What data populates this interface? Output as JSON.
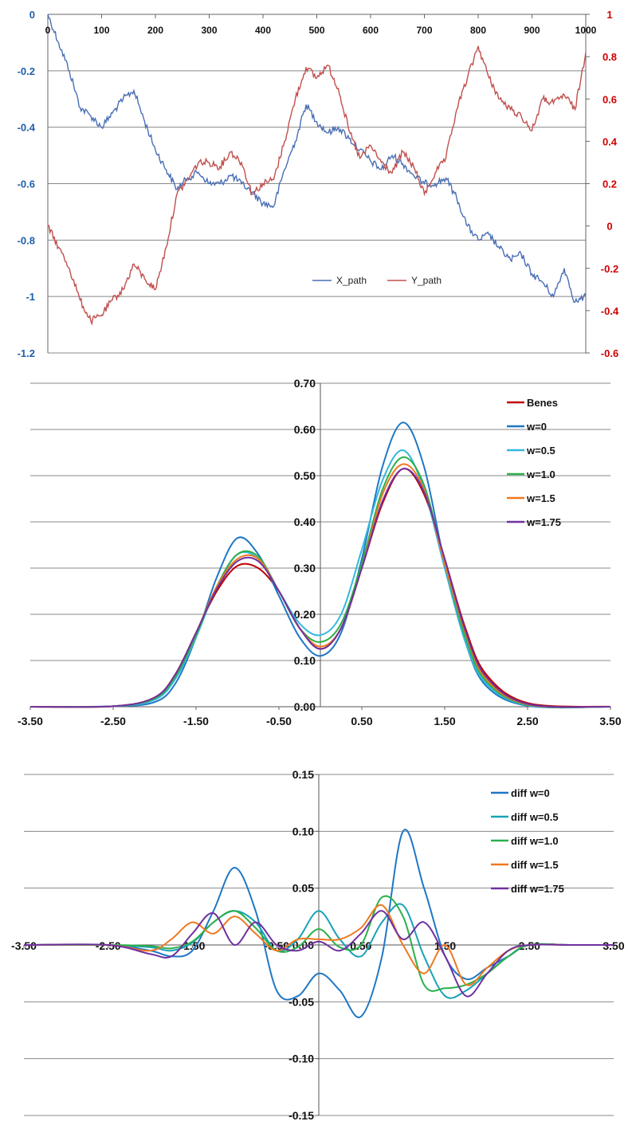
{
  "chart_data": [
    {
      "type": "line",
      "title": "",
      "xlabel": "",
      "ylabel": "",
      "xlim": [
        0,
        1000
      ],
      "x_ticks": [
        0,
        100,
        200,
        300,
        400,
        500,
        600,
        700,
        800,
        900,
        1000
      ],
      "y_left_lim": [
        -1.2,
        0
      ],
      "y_left_ticks": [
        0,
        -0.2,
        -0.4,
        -0.6,
        -0.8,
        -1,
        -1.2
      ],
      "y_right_lim": [
        -0.6,
        1
      ],
      "y_right_ticks": [
        1,
        0.8,
        0.6,
        0.4,
        0.2,
        0,
        -0.2,
        -0.4,
        -0.6
      ],
      "grid": true,
      "legend": "bottom-center",
      "series": [
        {
          "name": "X_path",
          "axis": "left",
          "color": "#4a6fb5",
          "x": [
            0,
            20,
            40,
            60,
            80,
            100,
            120,
            140,
            160,
            180,
            200,
            220,
            240,
            260,
            280,
            300,
            320,
            340,
            360,
            380,
            400,
            420,
            440,
            460,
            480,
            500,
            520,
            540,
            560,
            580,
            600,
            620,
            640,
            660,
            680,
            700,
            720,
            740,
            760,
            780,
            800,
            820,
            840,
            860,
            880,
            900,
            920,
            940,
            960,
            980,
            1000
          ],
          "y": [
            0,
            -0.1,
            -0.2,
            -0.33,
            -0.36,
            -0.4,
            -0.35,
            -0.3,
            -0.27,
            -0.38,
            -0.48,
            -0.55,
            -0.62,
            -0.58,
            -0.56,
            -0.6,
            -0.6,
            -0.57,
            -0.6,
            -0.63,
            -0.67,
            -0.68,
            -0.55,
            -0.45,
            -0.32,
            -0.38,
            -0.42,
            -0.4,
            -0.44,
            -0.48,
            -0.52,
            -0.55,
            -0.5,
            -0.53,
            -0.57,
            -0.6,
            -0.6,
            -0.58,
            -0.65,
            -0.75,
            -0.8,
            -0.78,
            -0.83,
            -0.87,
            -0.85,
            -0.92,
            -0.95,
            -1.0,
            -0.9,
            -1.02,
            -1.0
          ]
        },
        {
          "name": "Y_path",
          "axis": "right",
          "color": "#c0504d",
          "x": [
            0,
            20,
            40,
            60,
            80,
            100,
            120,
            140,
            160,
            180,
            200,
            220,
            240,
            260,
            280,
            300,
            320,
            340,
            360,
            380,
            400,
            420,
            440,
            460,
            480,
            500,
            520,
            540,
            560,
            580,
            600,
            620,
            640,
            660,
            680,
            700,
            720,
            740,
            760,
            780,
            800,
            820,
            840,
            860,
            880,
            900,
            920,
            940,
            960,
            980,
            1000
          ],
          "y": [
            0,
            -0.1,
            -0.2,
            -0.35,
            -0.45,
            -0.42,
            -0.35,
            -0.3,
            -0.18,
            -0.25,
            -0.3,
            -0.1,
            0.15,
            0.22,
            0.3,
            0.3,
            0.28,
            0.35,
            0.3,
            0.15,
            0.2,
            0.22,
            0.4,
            0.6,
            0.75,
            0.7,
            0.76,
            0.65,
            0.45,
            0.32,
            0.38,
            0.3,
            0.25,
            0.35,
            0.28,
            0.15,
            0.25,
            0.32,
            0.55,
            0.7,
            0.85,
            0.7,
            0.6,
            0.55,
            0.52,
            0.45,
            0.6,
            0.58,
            0.62,
            0.55,
            0.82
          ]
        }
      ]
    },
    {
      "type": "line",
      "title": "",
      "xlabel": "",
      "ylabel": "",
      "xlim": [
        -3.5,
        3.5
      ],
      "x_ticks": [
        -3.5,
        -2.5,
        -1.5,
        -0.5,
        0.5,
        1.5,
        2.5,
        3.5
      ],
      "x_tick_labels": [
        "-3.50",
        "-2.50",
        "-1.50",
        "-0.50",
        "0.50",
        "1.50",
        "2.50",
        "3.50"
      ],
      "ylim": [
        0,
        0.7
      ],
      "y_ticks": [
        0,
        0.1,
        0.2,
        0.3,
        0.4,
        0.5,
        0.6,
        0.7
      ],
      "y_tick_labels": [
        "0.00",
        "0.10",
        "0.20",
        "0.30",
        "0.40",
        "0.50",
        "0.60",
        "0.70"
      ],
      "grid": true,
      "legend": "top-right",
      "x": [
        -3.5,
        -2.5,
        -2.0,
        -1.75,
        -1.5,
        -1.25,
        -1.0,
        -0.75,
        -0.5,
        -0.25,
        0,
        0.25,
        0.5,
        0.75,
        1.0,
        1.25,
        1.5,
        1.75,
        2.0,
        2.5,
        3.5
      ],
      "series": [
        {
          "name": "Benes",
          "color": "#c00000",
          "values": [
            0,
            0.001,
            0.02,
            0.07,
            0.16,
            0.25,
            0.305,
            0.3,
            0.25,
            0.17,
            0.125,
            0.17,
            0.3,
            0.44,
            0.515,
            0.46,
            0.32,
            0.17,
            0.07,
            0.008,
            0
          ]
        },
        {
          "name": "w=0",
          "color": "#1f77c4",
          "values": [
            0,
            0.001,
            0.01,
            0.05,
            0.15,
            0.28,
            0.365,
            0.33,
            0.24,
            0.15,
            0.11,
            0.16,
            0.32,
            0.52,
            0.615,
            0.52,
            0.31,
            0.14,
            0.045,
            0.002,
            0
          ]
        },
        {
          "name": "w=0.5",
          "color": "#33b8e0",
          "values": [
            0,
            0.001,
            0.015,
            0.06,
            0.15,
            0.26,
            0.33,
            0.32,
            0.25,
            0.18,
            0.155,
            0.2,
            0.34,
            0.49,
            0.555,
            0.47,
            0.3,
            0.14,
            0.05,
            0.003,
            0
          ]
        },
        {
          "name": "w=1.0",
          "color": "#2ab04a",
          "values": [
            0,
            0.001,
            0.018,
            0.065,
            0.155,
            0.26,
            0.33,
            0.325,
            0.25,
            0.17,
            0.14,
            0.18,
            0.31,
            0.47,
            0.54,
            0.48,
            0.31,
            0.15,
            0.055,
            0.004,
            0
          ]
        },
        {
          "name": "w=1.5",
          "color": "#f07820",
          "values": [
            0,
            0.001,
            0.02,
            0.07,
            0.16,
            0.26,
            0.32,
            0.32,
            0.25,
            0.17,
            0.13,
            0.17,
            0.3,
            0.46,
            0.525,
            0.47,
            0.31,
            0.16,
            0.06,
            0.005,
            0
          ]
        },
        {
          "name": "w=1.75",
          "color": "#7030a0",
          "values": [
            0,
            0.001,
            0.02,
            0.07,
            0.16,
            0.255,
            0.315,
            0.315,
            0.25,
            0.17,
            0.125,
            0.17,
            0.3,
            0.445,
            0.515,
            0.465,
            0.32,
            0.165,
            0.065,
            0.006,
            0
          ]
        }
      ]
    },
    {
      "type": "line",
      "title": "",
      "xlabel": "",
      "ylabel": "",
      "xlim": [
        -3.5,
        3.5
      ],
      "x_ticks": [
        -3.5,
        -2.5,
        -1.5,
        -0.5,
        0.5,
        1.5,
        2.5,
        3.5
      ],
      "x_tick_labels": [
        "-3.50",
        "-2.50",
        "-1.50",
        "-0.50",
        "0.50",
        "1.50",
        "2.50",
        "3.50"
      ],
      "ylim": [
        -0.15,
        0.15
      ],
      "y_ticks": [
        0.15,
        0.1,
        0.05,
        0,
        -0.05,
        -0.1,
        -0.15
      ],
      "y_tick_labels": [
        "0.15",
        "0.10",
        "0.05",
        "0.00",
        "-0.05",
        "-0.10",
        "-0.15"
      ],
      "grid": true,
      "legend": "top-right",
      "x": [
        -3.5,
        -2.5,
        -2.0,
        -1.75,
        -1.5,
        -1.25,
        -1.0,
        -0.75,
        -0.5,
        -0.25,
        0,
        0.25,
        0.5,
        0.75,
        1.0,
        1.25,
        1.5,
        1.75,
        2.0,
        2.25,
        2.5,
        3.0,
        3.5
      ],
      "series": [
        {
          "name": "diff w=0",
          "color": "#1f77c4",
          "values": [
            0,
            0,
            -0.005,
            -0.01,
            -0.005,
            0.03,
            0.068,
            0.03,
            -0.04,
            -0.045,
            -0.025,
            -0.04,
            -0.063,
            -0.01,
            0.1,
            0.05,
            -0.01,
            -0.03,
            -0.02,
            -0.01,
            0,
            0,
            0
          ]
        },
        {
          "name": "diff w=0.5",
          "color": "#17a2b8",
          "values": [
            0,
            0,
            -0.002,
            -0.005,
            0.002,
            0.02,
            0.03,
            0.02,
            -0.005,
            0.005,
            0.03,
            0.005,
            -0.01,
            0.02,
            0.035,
            -0.01,
            -0.045,
            -0.04,
            -0.025,
            -0.01,
            0,
            0,
            0
          ]
        },
        {
          "name": "diff w=1.0",
          "color": "#2ab04a",
          "values": [
            0,
            0,
            -0.001,
            -0.003,
            0.003,
            0.02,
            0.03,
            0.015,
            -0.005,
            -0.002,
            0.014,
            -0.002,
            0.0,
            0.042,
            0.025,
            -0.035,
            -0.038,
            -0.035,
            -0.025,
            -0.01,
            0,
            0,
            0
          ]
        },
        {
          "name": "diff w=1.5",
          "color": "#f07820",
          "values": [
            0,
            0,
            -0.005,
            0.005,
            0.02,
            0.01,
            0.025,
            0.01,
            -0.005,
            0.005,
            0.005,
            0.005,
            0.015,
            0.035,
            0.0,
            -0.025,
            0.0,
            -0.035,
            -0.02,
            -0.005,
            0,
            0,
            0
          ]
        },
        {
          "name": "diff w=1.75",
          "color": "#7030a0",
          "values": [
            0,
            0,
            -0.008,
            -0.01,
            0.01,
            0.028,
            0.0,
            0.02,
            0.0,
            -0.005,
            0.003,
            -0.005,
            0.01,
            0.03,
            0.005,
            0.02,
            -0.01,
            -0.045,
            -0.025,
            -0.005,
            0,
            0,
            0
          ]
        }
      ]
    }
  ]
}
